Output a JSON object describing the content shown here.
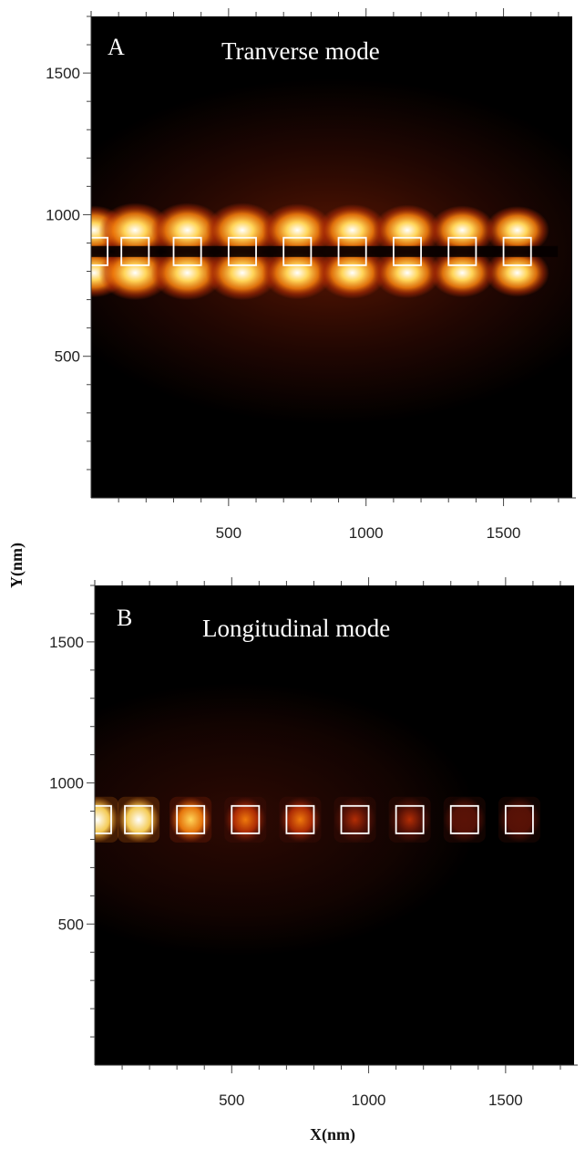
{
  "figure": {
    "ylabel": "Y(nm)",
    "xlabel": "X(nm)"
  },
  "chart_data": [
    {
      "type": "heatmap",
      "panel_letter": "A",
      "title": "Tranverse mode",
      "xlim": [
        0,
        1750
      ],
      "ylim": [
        0,
        1700
      ],
      "xticks": [
        500,
        1000,
        1500
      ],
      "yticks": [
        500,
        1000,
        1500
      ],
      "colormap": [
        "#000000",
        "#5a1206",
        "#b32d05",
        "#ef7a0c",
        "#ffd55a",
        "#ffffff"
      ],
      "particle_size_nm": 100,
      "particle_centers_x_nm": [
        10,
        160,
        350,
        550,
        750,
        950,
        1150,
        1350,
        1550
      ],
      "particle_center_y_nm": 870,
      "lobe_offset_y_nm": 85,
      "relative_intensity": [
        0.9,
        1.0,
        1.0,
        1.0,
        0.97,
        0.95,
        0.93,
        0.9,
        0.88
      ]
    },
    {
      "type": "heatmap",
      "panel_letter": "B",
      "title": "Longitudinal mode",
      "xlim": [
        0,
        1750
      ],
      "ylim": [
        0,
        1700
      ],
      "xticks": [
        500,
        1000,
        1500
      ],
      "yticks": [
        500,
        1000,
        1500
      ],
      "colormap": [
        "#000000",
        "#5a1206",
        "#b32d05",
        "#ef7a0c",
        "#ffd55a",
        "#ffffff"
      ],
      "particle_size_nm": 100,
      "particle_centers_x_nm": [
        10,
        160,
        350,
        550,
        750,
        950,
        1150,
        1350,
        1550
      ],
      "particle_center_y_nm": 870,
      "relative_intensity": [
        1.0,
        0.95,
        0.8,
        0.66,
        0.52,
        0.42,
        0.33,
        0.25,
        0.12
      ]
    }
  ]
}
